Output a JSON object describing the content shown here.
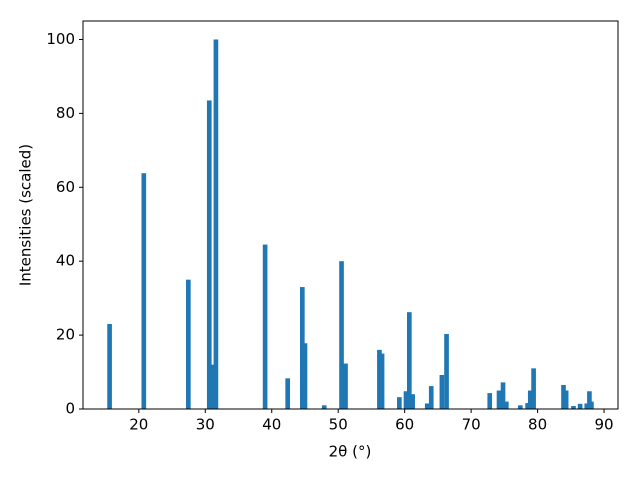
{
  "chart_data": {
    "type": "bar",
    "x_label": "2θ (°)",
    "y_label": "Intensities (scaled)",
    "color": "#1f77b4",
    "x": [
      15.6,
      20.75,
      27.45,
      30.6,
      31.0,
      31.6,
      39.0,
      42.4,
      44.6,
      45.0,
      47.9,
      50.5,
      51.1,
      56.2,
      56.6,
      59.2,
      60.2,
      60.7,
      61.2,
      63.4,
      64.0,
      65.6,
      66.3,
      72.8,
      74.2,
      74.8,
      75.3,
      77.4,
      78.5,
      78.9,
      79.4,
      83.9,
      84.3,
      85.4,
      86.4,
      87.4,
      87.8,
      88.1
    ],
    "values": [
      23,
      63.8,
      35,
      83.5,
      12,
      100,
      44.5,
      8.3,
      33,
      17.8,
      1,
      40,
      12.3,
      16,
      15,
      3.2,
      4.8,
      26.2,
      4,
      1.5,
      6.2,
      9.2,
      20.3,
      4.3,
      5,
      7.2,
      2,
      1,
      1.6,
      5,
      11,
      6.5,
      5,
      0.8,
      1.4,
      1.5,
      4.8,
      2
    ],
    "xlim": [
      11.6,
      92.1
    ],
    "ylim": [
      0,
      105
    ],
    "xticks": [
      20,
      30,
      40,
      50,
      60,
      70,
      80,
      90
    ],
    "yticks": [
      0,
      20,
      40,
      60,
      80,
      100
    ]
  }
}
